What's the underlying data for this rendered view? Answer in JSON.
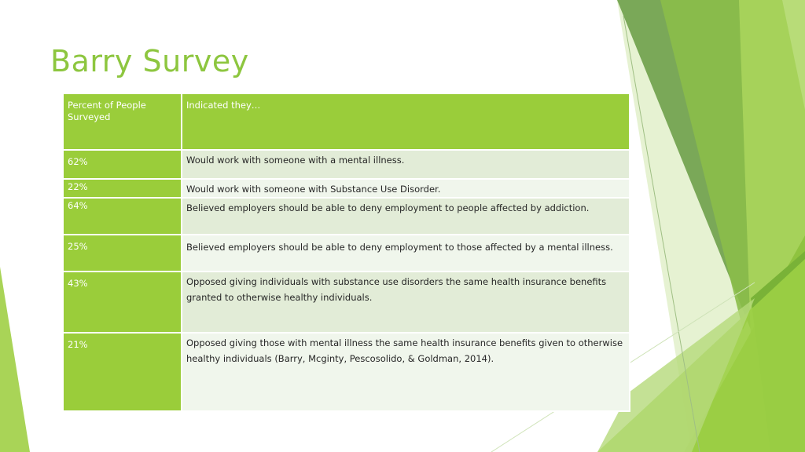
{
  "slide": {
    "title": "Barry Survey"
  },
  "table": {
    "headers": [
      "Percent of People Surveyed",
      "Indicated they…"
    ],
    "rows": [
      {
        "percent": "62%",
        "text": "Would work with someone with a mental illness."
      },
      {
        "percent": "22%",
        "text": "Would work with someone with Substance Use Disorder."
      },
      {
        "percent": "64%",
        "text": "Believed employers should be able to deny employment to people affected by addiction."
      },
      {
        "percent": "25%",
        "text": "Believed employers should be able to deny employment to those affected by a mental illness."
      },
      {
        "percent": "43%",
        "text": "Opposed giving individuals with substance use disorders the same health insurance benefits granted to otherwise healthy individuals."
      },
      {
        "percent": "21%",
        "text": "Opposed giving those with mental illness the same health insurance benefits given to otherwise healthy individuals (Barry, Mcginty, Pescosolido, & Goldman, 2014)."
      }
    ]
  },
  "theme": {
    "accent": "#9acd3a",
    "title_color": "#8dc63f",
    "dark_green": "#6a9a3a"
  }
}
